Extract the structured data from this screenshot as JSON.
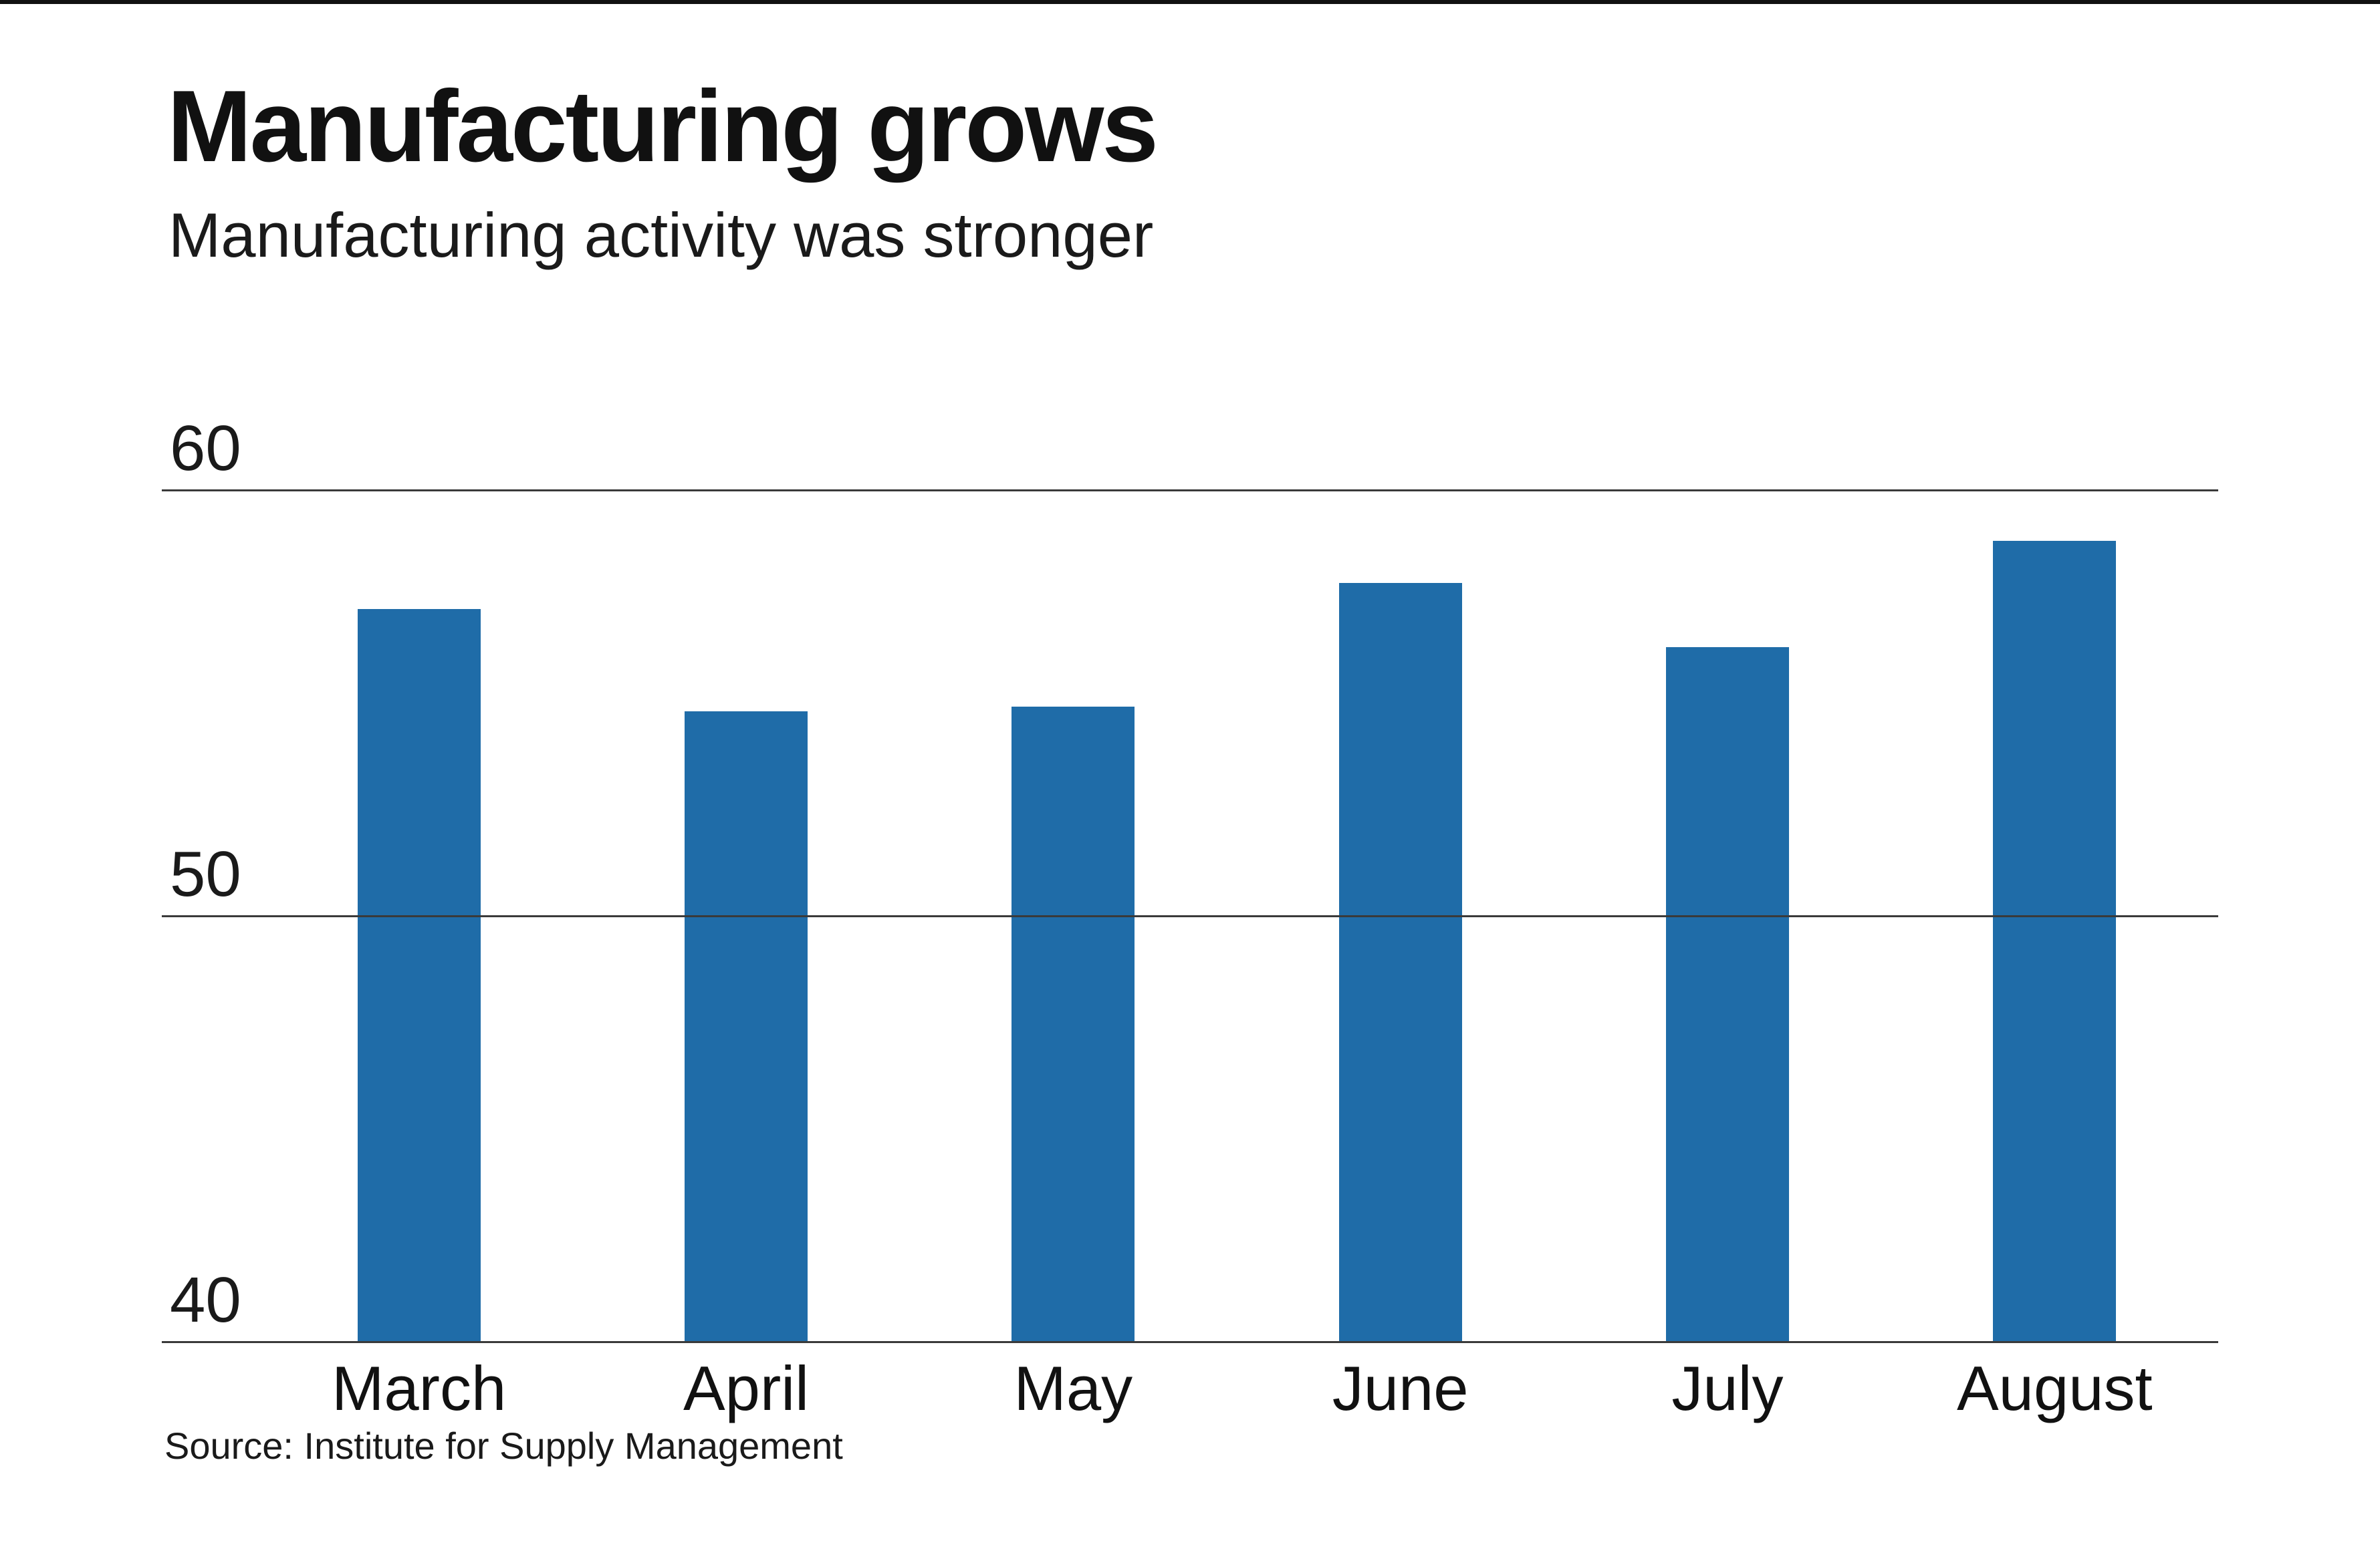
{
  "header": {
    "title": "Manufacturing grows",
    "subtitle": "Manufacturing activity was stronger"
  },
  "source": "Source: Institute for Supply Management",
  "chart_data": {
    "type": "bar",
    "title": "Manufacturing grows",
    "subtitle": "Manufacturing activity was stronger",
    "categories": [
      "March",
      "April",
      "May",
      "June",
      "July",
      "August"
    ],
    "values": [
      57.2,
      54.8,
      54.9,
      57.8,
      56.3,
      58.8
    ],
    "xlabel": "",
    "ylabel": "",
    "ylim": [
      40,
      62
    ],
    "yticks": [
      40,
      50,
      60
    ],
    "grid": true,
    "legend": "none",
    "bar_color": "#1f6ca8",
    "source": "Source: Institute for Supply Management"
  }
}
